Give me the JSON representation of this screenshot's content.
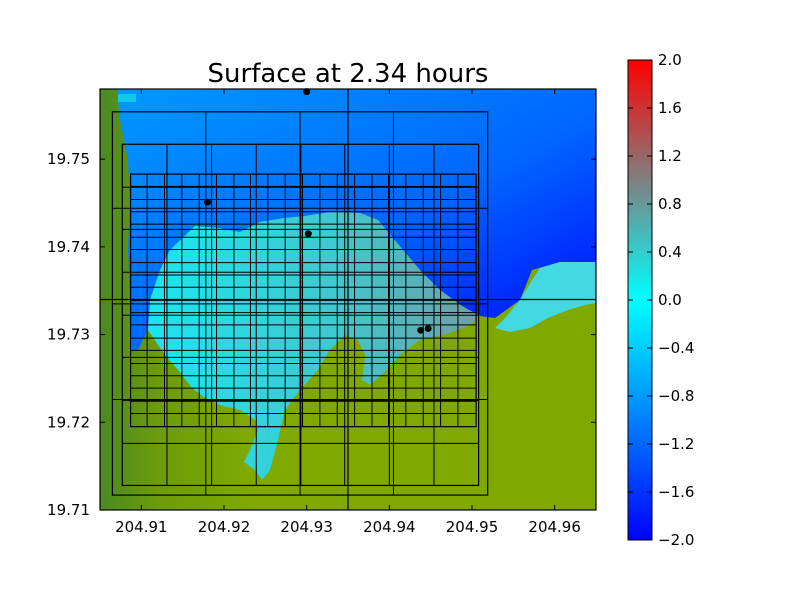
{
  "chart_data": {
    "type": "heatmap",
    "title": "Surface at 2.34 hours",
    "xlabel": "",
    "ylabel": "",
    "xlim": [
      204.905,
      204.965
    ],
    "ylim": [
      19.71,
      19.758
    ],
    "xticks": [
      "204.91",
      "204.92",
      "204.93",
      "204.94",
      "204.95",
      "204.96"
    ],
    "yticks": [
      "19.71",
      "19.72",
      "19.73",
      "19.74",
      "19.75"
    ],
    "grid": false,
    "colorbar": {
      "range": [
        -2.0,
        2.0
      ],
      "ticks": [
        "2.0",
        "1.6",
        "1.2",
        "0.8",
        "0.4",
        "0.0",
        "−0.4",
        "−0.8",
        "−1.2",
        "−1.6",
        "−2.0"
      ],
      "colors": [
        "#0000ff",
        "#00ffff",
        "#808080",
        "#ff0000"
      ]
    },
    "land_color": "#7fa800",
    "gauges": [
      {
        "x": 204.93,
        "y": 19.7577
      },
      {
        "x": 204.918,
        "y": 19.7451
      },
      {
        "x": 204.9302,
        "y": 19.7415
      },
      {
        "x": 204.9438,
        "y": 19.7305
      },
      {
        "x": 204.9447,
        "y": 19.7307
      }
    ],
    "grid_patches": [
      {
        "x0": 204.9065,
        "x1": 204.9519,
        "y0": 19.7117,
        "y1": 19.7554,
        "vlines": [
          204.9178,
          204.9292,
          204.9405
        ],
        "hlines": [
          19.7226,
          19.7335,
          19.7444
        ]
      },
      {
        "x0": 204.9077,
        "x1": 204.9508,
        "y0": 19.7128,
        "y1": 19.7517,
        "vlines": [
          204.9131,
          204.9185,
          204.9239,
          204.9293,
          204.9346,
          204.94,
          204.9454
        ],
        "hlines": [
          19.7176,
          19.7225,
          19.7274,
          19.7322,
          19.7371,
          19.742,
          19.7468
        ]
      },
      {
        "x0": 204.9087,
        "x1": 204.9505,
        "y0": 19.7195,
        "y1": 19.7483,
        "vlines": [
          204.9107,
          204.9128,
          204.9149,
          204.917,
          204.9191,
          204.9212,
          204.9232,
          204.9253,
          204.9274,
          204.9295,
          204.9316,
          204.9337,
          204.9358,
          204.9379,
          204.9399,
          204.942,
          204.9441,
          204.9462,
          204.9483
        ],
        "hlines": [
          19.721,
          19.7224,
          19.7239,
          19.7253,
          19.7267,
          19.7282,
          19.7296,
          19.7311,
          19.7325,
          19.7339,
          19.7354,
          19.7368,
          19.7382,
          19.7397,
          19.7411,
          19.7426,
          19.744,
          19.7454,
          19.7469
        ]
      }
    ],
    "crosshair": {
      "x": 204.935,
      "y": 19.734
    }
  }
}
